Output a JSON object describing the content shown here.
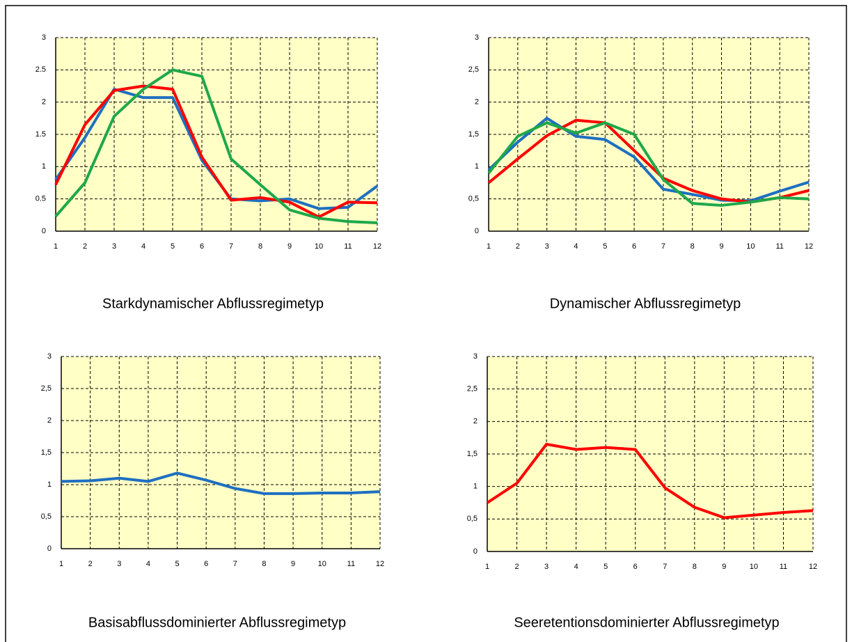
{
  "chart_data": [
    {
      "type": "line",
      "title": "Starkdynamischer Abflussregimetyp",
      "x": [
        1,
        2,
        3,
        4,
        5,
        6,
        7,
        8,
        9,
        10,
        11,
        12
      ],
      "xlim": [
        1,
        12
      ],
      "xticks": [
        1,
        2,
        3,
        4,
        5,
        6,
        7,
        8,
        9,
        10,
        11,
        12
      ],
      "ylim": [
        0,
        3
      ],
      "yticks": [
        0,
        0.5,
        1,
        1.5,
        2,
        2.5,
        3
      ],
      "grid": true,
      "series": [
        {
          "color": "#1e6fc1",
          "values": [
            0.8,
            1.45,
            2.2,
            2.07,
            2.07,
            1.1,
            0.5,
            0.47,
            0.5,
            0.35,
            0.37,
            0.7
          ]
        },
        {
          "color": "#ff0000",
          "values": [
            0.72,
            1.65,
            2.18,
            2.25,
            2.2,
            1.15,
            0.48,
            0.52,
            0.45,
            0.22,
            0.45,
            0.44
          ]
        },
        {
          "color": "#1ea84a",
          "values": [
            0.23,
            0.75,
            1.78,
            2.2,
            2.5,
            2.4,
            1.12,
            0.72,
            0.33,
            0.2,
            0.15,
            0.13
          ]
        }
      ]
    },
    {
      "type": "line",
      "title": "Dynamischer Abflussregimetyp",
      "x": [
        1,
        2,
        3,
        4,
        5,
        6,
        7,
        8,
        9,
        10,
        11,
        12
      ],
      "xlim": [
        1,
        12
      ],
      "xticks": [
        1,
        2,
        3,
        4,
        5,
        6,
        7,
        8,
        9,
        10,
        11,
        12
      ],
      "ylim": [
        0,
        3
      ],
      "yticks": [
        0,
        {
          "value": 0.5,
          "label": "0,5"
        },
        1,
        {
          "value": 1.5,
          "label": "1,5"
        },
        2,
        {
          "value": 2.5,
          "label": "2,5"
        },
        3
      ],
      "grid": true,
      "series": [
        {
          "color": "#1e6fc1",
          "values": [
            0.95,
            1.38,
            1.75,
            1.47,
            1.42,
            1.15,
            0.65,
            0.57,
            0.48,
            0.47,
            0.62,
            0.76
          ]
        },
        {
          "color": "#ff0000",
          "values": [
            0.75,
            1.12,
            1.48,
            1.72,
            1.68,
            1.25,
            0.82,
            0.63,
            0.5,
            0.45,
            0.52,
            0.63
          ]
        },
        {
          "color": "#1ea84a",
          "values": [
            0.9,
            1.47,
            1.68,
            1.52,
            1.68,
            1.5,
            0.8,
            0.43,
            0.4,
            0.45,
            0.52,
            0.5
          ]
        }
      ]
    },
    {
      "type": "line",
      "title": "Basisabflussdominierter Abflussregimetyp",
      "x": [
        1,
        2,
        3,
        4,
        5,
        6,
        7,
        8,
        9,
        10,
        11,
        12
      ],
      "xlim": [
        1,
        12
      ],
      "xticks": [
        1,
        2,
        3,
        4,
        5,
        6,
        7,
        8,
        9,
        10,
        11,
        12
      ],
      "ylim": [
        0,
        3
      ],
      "yticks": [
        0,
        {
          "value": 0.5,
          "label": "0,5"
        },
        1,
        {
          "value": 1.5,
          "label": "1,5"
        },
        2,
        {
          "value": 2.5,
          "label": "2,5"
        },
        3
      ],
      "grid": true,
      "series": [
        {
          "color": "#1e6fc1",
          "values": [
            1.05,
            1.06,
            1.1,
            1.05,
            1.18,
            1.07,
            0.94,
            0.86,
            0.86,
            0.87,
            0.87,
            0.89
          ]
        }
      ]
    },
    {
      "type": "line",
      "title": "Seeretentionsdominierter Abflussregimetyp",
      "x": [
        1,
        2,
        3,
        4,
        5,
        6,
        7,
        8,
        9,
        10,
        11,
        12
      ],
      "xlim": [
        1,
        12
      ],
      "xticks": [
        1,
        2,
        3,
        4,
        5,
        6,
        7,
        8,
        9,
        10,
        11,
        12
      ],
      "ylim": [
        0,
        3
      ],
      "yticks": [
        0,
        {
          "value": 0.5,
          "label": "0,5"
        },
        1,
        {
          "value": 1.5,
          "label": "1,5"
        },
        2,
        {
          "value": 2.5,
          "label": "2,5"
        },
        3
      ],
      "grid": true,
      "series": [
        {
          "color": "#ff0000",
          "values": [
            0.75,
            1.05,
            1.65,
            1.57,
            1.6,
            1.57,
            0.98,
            0.68,
            0.52,
            0.56,
            0.6,
            0.63
          ]
        }
      ]
    }
  ]
}
